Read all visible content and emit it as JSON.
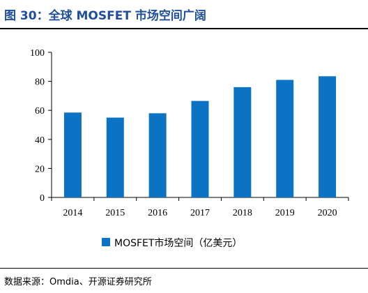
{
  "figure": {
    "title": "图 30：全球 MOSFET 市场空间广阔",
    "source": "数据来源：Omdia、开源证券研究所"
  },
  "colors": {
    "bar": "#0b72c4",
    "title": "#1f4e9b",
    "axis": "#000000"
  },
  "chart_data": {
    "type": "bar",
    "title": "",
    "xlabel": "",
    "ylabel": "",
    "categories": [
      "2014",
      "2015",
      "2016",
      "2017",
      "2018",
      "2019",
      "2020"
    ],
    "series": [
      {
        "name": "MOSFET市场空间（亿美元）",
        "values": [
          58.5,
          55,
          58,
          66.5,
          76,
          81,
          83.5
        ]
      }
    ],
    "ylim": [
      0,
      100
    ],
    "yticks": [
      "0",
      "20",
      "40",
      "60",
      "80",
      "100"
    ],
    "grid": false,
    "legend_position": "bottom-center"
  }
}
